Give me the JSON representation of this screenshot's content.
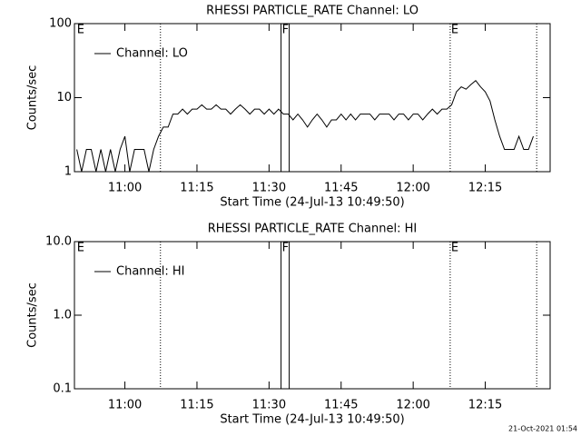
{
  "chart_data": [
    {
      "type": "line",
      "title": "RHESSI PARTICLE_RATE Channel: LO",
      "ylabel": "Counts/sec",
      "xlabel": "Start Time (24-Jul-13 10:49:50)",
      "log_y": true,
      "ylim": [
        1,
        100
      ],
      "yticks": [
        1,
        10,
        100
      ],
      "xlim": [
        49.5,
        148.5
      ],
      "xticks": [
        {
          "value": 60,
          "label": "11:00"
        },
        {
          "value": 75,
          "label": "11:15"
        },
        {
          "value": 90,
          "label": "11:30"
        },
        {
          "value": 105,
          "label": "11:45"
        },
        {
          "value": 120,
          "label": "12:00"
        },
        {
          "value": 135,
          "label": "12:15"
        }
      ],
      "legend": "upper left",
      "flags": [
        {
          "label": "E",
          "x": 49.83
        },
        {
          "label": "F",
          "x": 92.5
        },
        {
          "label": "E",
          "x": 127.7
        }
      ],
      "lines": [
        {
          "x": 67.4,
          "style": "dotted"
        },
        {
          "x": 92.5,
          "style": "solid"
        },
        {
          "x": 94.2,
          "style": "solid"
        },
        {
          "x": 127.7,
          "style": "dotted"
        },
        {
          "x": 145.7,
          "style": "dotted"
        }
      ],
      "x": [
        50,
        51,
        52,
        53,
        54,
        55,
        56,
        57,
        58,
        59,
        60,
        61,
        62,
        63,
        64,
        65,
        66,
        67,
        68,
        69,
        70,
        71,
        72,
        73,
        74,
        75,
        76,
        77,
        78,
        79,
        80,
        81,
        82,
        83,
        84,
        85,
        86,
        87,
        88,
        89,
        90,
        91,
        92,
        93,
        94,
        95,
        96,
        97,
        98,
        99,
        100,
        101,
        102,
        103,
        104,
        105,
        106,
        107,
        108,
        109,
        110,
        111,
        112,
        113,
        114,
        115,
        116,
        117,
        118,
        119,
        120,
        121,
        122,
        123,
        124,
        125,
        126,
        127,
        128,
        129,
        130,
        131,
        132,
        133,
        134,
        135,
        136,
        137,
        138,
        139,
        140,
        141,
        142,
        143,
        144,
        145
      ],
      "series": [
        {
          "name": "Channel: LO",
          "color": "#000000",
          "values": [
            2,
            1,
            2,
            2,
            1,
            2,
            1,
            2,
            1,
            2,
            3,
            1,
            2,
            2,
            2,
            1,
            2,
            3,
            4,
            4,
            6,
            6,
            7,
            6,
            7,
            7,
            8,
            7,
            7,
            8,
            7,
            7,
            6,
            7,
            8,
            7,
            6,
            7,
            7,
            6,
            7,
            6,
            7,
            6,
            6,
            5,
            6,
            5,
            4,
            5,
            6,
            5,
            4,
            5,
            5,
            6,
            5,
            6,
            5,
            6,
            6,
            6,
            5,
            6,
            6,
            6,
            5,
            6,
            6,
            5,
            6,
            6,
            5,
            6,
            7,
            6,
            7,
            7,
            8,
            12,
            14,
            13,
            15,
            17,
            14,
            12,
            9,
            5,
            3,
            2,
            2,
            2,
            3,
            2,
            2,
            3
          ]
        }
      ]
    },
    {
      "type": "line",
      "title": "RHESSI PARTICLE_RATE Channel: HI",
      "ylabel": "Counts/sec",
      "xlabel": "Start Time (24-Jul-13 10:49:50)",
      "log_y": true,
      "ylim": [
        0.1,
        10
      ],
      "yticks": [
        0.1,
        {
          "value": 1,
          "label": "1.0"
        },
        {
          "value": 10,
          "label": "10.0"
        }
      ],
      "xlim": [
        49.5,
        148.5
      ],
      "xticks": [
        {
          "value": 60,
          "label": "11:00"
        },
        {
          "value": 75,
          "label": "11:15"
        },
        {
          "value": 90,
          "label": "11:30"
        },
        {
          "value": 105,
          "label": "11:45"
        },
        {
          "value": 120,
          "label": "12:00"
        },
        {
          "value": 135,
          "label": "12:15"
        }
      ],
      "legend": "upper left",
      "flags": [
        {
          "label": "E",
          "x": 49.83
        },
        {
          "label": "F",
          "x": 92.5
        },
        {
          "label": "E",
          "x": 127.7
        }
      ],
      "lines": [
        {
          "x": 67.4,
          "style": "dotted"
        },
        {
          "x": 92.5,
          "style": "solid"
        },
        {
          "x": 94.2,
          "style": "solid"
        },
        {
          "x": 127.7,
          "style": "dotted"
        },
        {
          "x": 145.7,
          "style": "dotted"
        }
      ],
      "x": [],
      "series": [
        {
          "name": "Channel: HI",
          "color": "#000000",
          "values": []
        }
      ]
    }
  ],
  "footer": "21-Oct-2021 01:54"
}
